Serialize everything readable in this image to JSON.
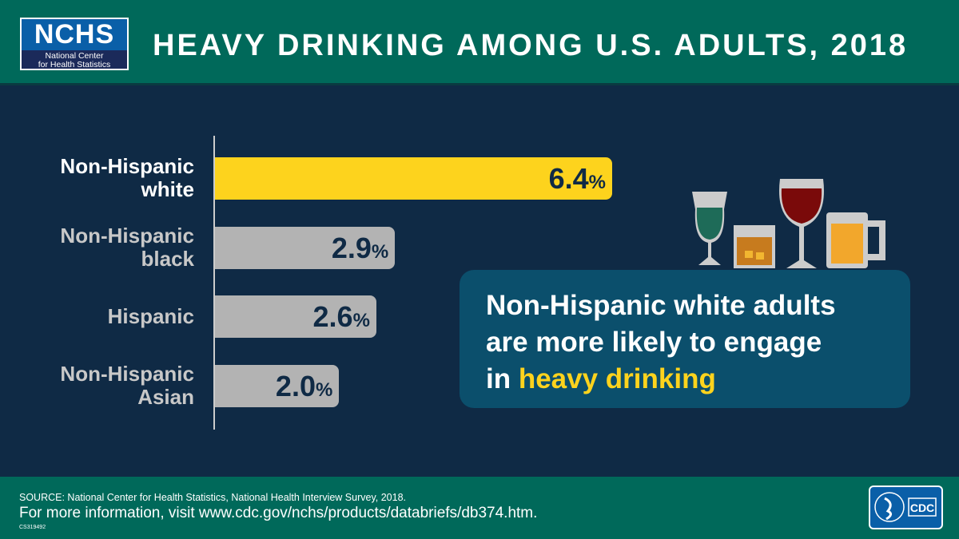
{
  "header": {
    "logo_main": "NCHS",
    "logo_sub1": "National Center",
    "logo_sub2": "for Health Statistics",
    "title": "HEAVY DRINKING AMONG U.S. ADULTS, 2018"
  },
  "chart_data": {
    "type": "bar",
    "orientation": "horizontal",
    "title": "HEAVY DRINKING AMONG U.S. ADULTS, 2018",
    "categories": [
      [
        "Non-Hispanic",
        "white"
      ],
      [
        "Non-Hispanic",
        "black"
      ],
      [
        "Hispanic"
      ],
      [
        "Non-Hispanic",
        "Asian"
      ]
    ],
    "values": [
      6.4,
      2.9,
      2.6,
      2.0
    ],
    "value_labels": [
      "6.4",
      "2.9",
      "2.6",
      "2.0"
    ],
    "unit": "%",
    "highlight_index": 0,
    "colors": {
      "highlight": "#fdd31d",
      "default": "#b3b3b3"
    },
    "xlim": [
      0,
      6.4
    ]
  },
  "callout": {
    "line1": "Non-Hispanic white adults",
    "line2": "are more likely to engage",
    "line3_prefix": "in ",
    "line3_highlight": "heavy drinking"
  },
  "footer": {
    "source": "SOURCE: National Center for Health Statistics, National Health Interview Survey, 2018.",
    "more": "For more information, visit www.cdc.gov/nchs/products/databriefs/db374.htm.",
    "code": "CS319492",
    "cdc_logo": "CDC"
  }
}
